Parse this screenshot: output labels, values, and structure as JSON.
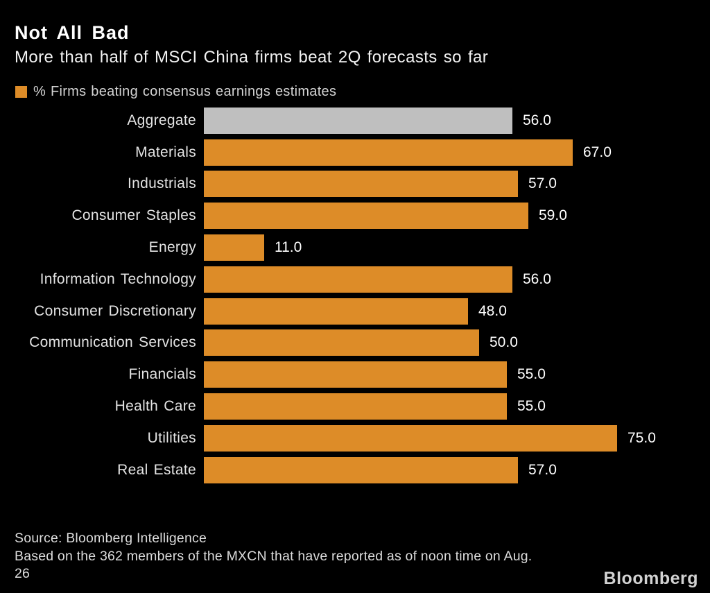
{
  "header": {
    "title": "Not All Bad",
    "subtitle": "More than half of MSCI China firms beat 2Q forecasts so far"
  },
  "legend": {
    "label": "% Firms beating consensus earnings estimates",
    "swatch_color": "#DD8C28"
  },
  "chart_data": {
    "type": "bar",
    "orientation": "horizontal",
    "title": "Not All Bad",
    "subtitle": "More than half of MSCI China firms beat 2Q forecasts so far",
    "series_name": "% Firms beating consensus earnings estimates",
    "unit": "%",
    "categories": [
      "Aggregate",
      "Materials",
      "Industrials",
      "Consumer Staples",
      "Energy",
      "Information Technology",
      "Consumer Discretionary",
      "Communication Services",
      "Financials",
      "Health Care",
      "Utilities",
      "Real Estate"
    ],
    "values": [
      56.0,
      67.0,
      57.0,
      59.0,
      11.0,
      56.0,
      48.0,
      50.0,
      55.0,
      55.0,
      75.0,
      57.0
    ],
    "value_labels": [
      "56.0",
      "67.0",
      "57.0",
      "59.0",
      "11.0",
      "56.0",
      "48.0",
      "50.0",
      "55.0",
      "55.0",
      "75.0",
      "57.0"
    ],
    "bar_colors": {
      "default": "#DD8C28",
      "aggregate": "#BFBFBF"
    },
    "xlim": [
      0,
      92
    ],
    "grid": false,
    "axis_ticks": "none",
    "legend_position": "top-left",
    "value_label_position": "right-of-bar"
  },
  "footer": {
    "source": "Source: Bloomberg Intelligence",
    "note_line1": "Based on the 362 members of the MXCN that have reported as of noon time on Aug.",
    "note_line2": "26",
    "brand": "Bloomberg"
  }
}
